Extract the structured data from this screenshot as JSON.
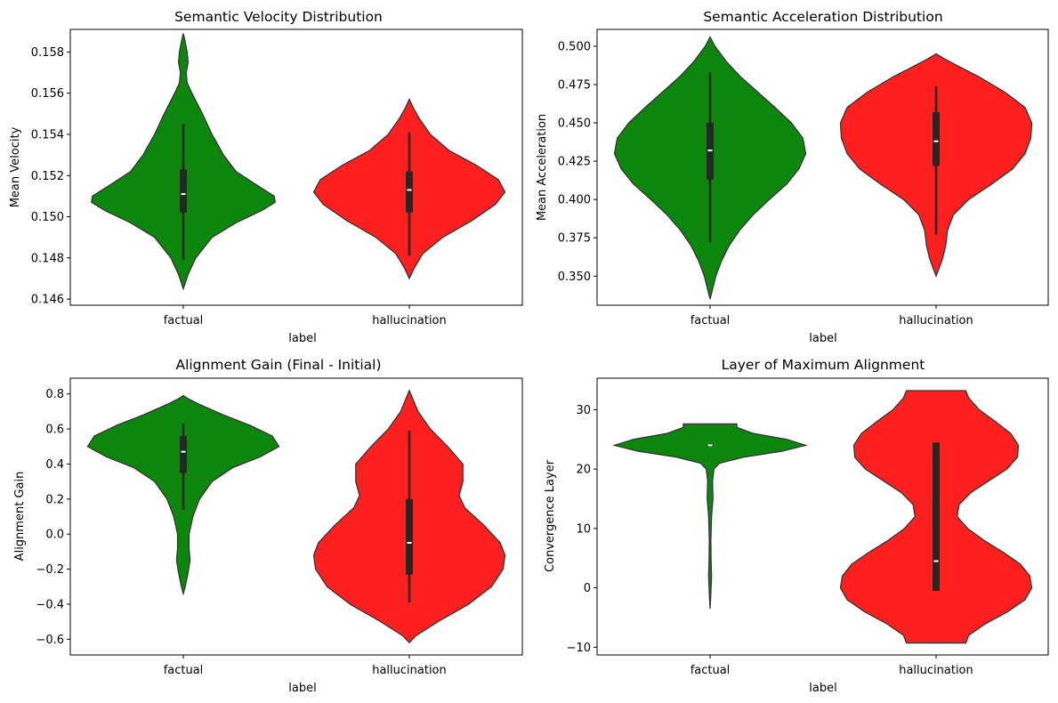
{
  "chart_data": [
    {
      "type": "violin",
      "title": "Semantic Velocity Distribution",
      "xlabel": "label",
      "ylabel": "Mean Velocity",
      "categories": [
        "factual",
        "hallucination"
      ],
      "colors": [
        "#008000",
        "#ff0000"
      ],
      "ylim": [
        0.1457,
        0.1591
      ],
      "yticks": [
        0.146,
        0.148,
        0.15,
        0.152,
        0.154,
        0.156,
        0.158
      ],
      "ytick_labels": [
        "0.146",
        "0.148",
        "0.150",
        "0.152",
        "0.154",
        "0.156",
        "0.158"
      ],
      "violins": [
        {
          "category": "factual",
          "min": 0.1465,
          "max": 0.1589,
          "whisker": [
            0.1479,
            0.1545
          ],
          "q1": 0.1502,
          "median": 0.1511,
          "q3": 0.1523,
          "profile": [
            [
              0.1465,
              0.0
            ],
            [
              0.1472,
              0.05
            ],
            [
              0.148,
              0.13
            ],
            [
              0.149,
              0.3
            ],
            [
              0.1497,
              0.55
            ],
            [
              0.1503,
              0.82
            ],
            [
              0.1507,
              0.96
            ],
            [
              0.151,
              0.95
            ],
            [
              0.1515,
              0.78
            ],
            [
              0.1522,
              0.55
            ],
            [
              0.153,
              0.42
            ],
            [
              0.154,
              0.3
            ],
            [
              0.155,
              0.2
            ],
            [
              0.156,
              0.09
            ],
            [
              0.1565,
              0.04
            ],
            [
              0.157,
              0.03
            ],
            [
              0.1575,
              0.05
            ],
            [
              0.158,
              0.04
            ],
            [
              0.1585,
              0.02
            ],
            [
              0.1589,
              0.0
            ]
          ]
        },
        {
          "category": "hallucination",
          "min": 0.147,
          "max": 0.1557,
          "whisker": [
            0.1481,
            0.1541
          ],
          "q1": 0.1502,
          "median": 0.1513,
          "q3": 0.1522,
          "profile": [
            [
              0.147,
              0.0
            ],
            [
              0.1475,
              0.05
            ],
            [
              0.1482,
              0.14
            ],
            [
              0.149,
              0.35
            ],
            [
              0.1498,
              0.65
            ],
            [
              0.1506,
              0.9
            ],
            [
              0.1512,
              1.0
            ],
            [
              0.1518,
              0.93
            ],
            [
              0.1525,
              0.7
            ],
            [
              0.1532,
              0.42
            ],
            [
              0.154,
              0.22
            ],
            [
              0.1548,
              0.1
            ],
            [
              0.1553,
              0.04
            ],
            [
              0.1557,
              0.0
            ]
          ]
        }
      ]
    },
    {
      "type": "violin",
      "title": "Semantic Acceleration Distribution",
      "xlabel": "label",
      "ylabel": "Mean Acceleration",
      "categories": [
        "factual",
        "hallucination"
      ],
      "colors": [
        "#008000",
        "#ff0000"
      ],
      "ylim": [
        0.331,
        0.511
      ],
      "yticks": [
        0.35,
        0.375,
        0.4,
        0.425,
        0.45,
        0.475,
        0.5
      ],
      "ytick_labels": [
        "0.350",
        "0.375",
        "0.400",
        "0.425",
        "0.450",
        "0.475",
        "0.500"
      ],
      "violins": [
        {
          "category": "factual",
          "min": 0.335,
          "max": 0.506,
          "whisker": [
            0.372,
            0.483
          ],
          "q1": 0.413,
          "median": 0.432,
          "q3": 0.45,
          "profile": [
            [
              0.335,
              0.0
            ],
            [
              0.34,
              0.02
            ],
            [
              0.35,
              0.06
            ],
            [
              0.36,
              0.12
            ],
            [
              0.37,
              0.2
            ],
            [
              0.38,
              0.31
            ],
            [
              0.39,
              0.45
            ],
            [
              0.4,
              0.62
            ],
            [
              0.41,
              0.8
            ],
            [
              0.42,
              0.93
            ],
            [
              0.43,
              1.0
            ],
            [
              0.44,
              0.97
            ],
            [
              0.45,
              0.85
            ],
            [
              0.46,
              0.68
            ],
            [
              0.47,
              0.5
            ],
            [
              0.48,
              0.32
            ],
            [
              0.49,
              0.17
            ],
            [
              0.5,
              0.05
            ],
            [
              0.506,
              0.0
            ]
          ]
        },
        {
          "category": "hallucination",
          "min": 0.35,
          "max": 0.495,
          "whisker": [
            0.377,
            0.474
          ],
          "q1": 0.422,
          "median": 0.438,
          "q3": 0.457,
          "profile": [
            [
              0.35,
              0.0
            ],
            [
              0.355,
              0.03
            ],
            [
              0.362,
              0.07
            ],
            [
              0.37,
              0.1
            ],
            [
              0.38,
              0.12
            ],
            [
              0.39,
              0.18
            ],
            [
              0.4,
              0.34
            ],
            [
              0.41,
              0.58
            ],
            [
              0.42,
              0.8
            ],
            [
              0.43,
              0.93
            ],
            [
              0.44,
              0.99
            ],
            [
              0.45,
              1.0
            ],
            [
              0.46,
              0.93
            ],
            [
              0.47,
              0.72
            ],
            [
              0.48,
              0.45
            ],
            [
              0.488,
              0.2
            ],
            [
              0.492,
              0.08
            ],
            [
              0.495,
              0.0
            ]
          ]
        }
      ]
    },
    {
      "type": "violin",
      "title": "Alignment Gain (Final - Initial)",
      "xlabel": "label",
      "ylabel": "Alignment Gain",
      "categories": [
        "factual",
        "hallucination"
      ],
      "colors": [
        "#008000",
        "#ff0000"
      ],
      "ylim": [
        -0.69,
        0.89
      ],
      "yticks": [
        -0.6,
        -0.4,
        -0.2,
        0.0,
        0.2,
        0.4,
        0.6,
        0.8
      ],
      "ytick_labels": [
        "−0.6",
        "−0.4",
        "−0.2",
        "0.0",
        "0.2",
        "0.4",
        "0.6",
        "0.8"
      ],
      "violins": [
        {
          "category": "factual",
          "min": -0.34,
          "max": 0.79,
          "whisker": [
            0.14,
            0.63
          ],
          "q1": 0.35,
          "median": 0.47,
          "q3": 0.56,
          "profile": [
            [
              -0.34,
              0.0
            ],
            [
              -0.3,
              0.02
            ],
            [
              -0.22,
              0.05
            ],
            [
              -0.15,
              0.07
            ],
            [
              -0.08,
              0.06
            ],
            [
              0.0,
              0.06
            ],
            [
              0.1,
              0.1
            ],
            [
              0.2,
              0.17
            ],
            [
              0.3,
              0.3
            ],
            [
              0.38,
              0.52
            ],
            [
              0.44,
              0.8
            ],
            [
              0.5,
              1.0
            ],
            [
              0.56,
              0.93
            ],
            [
              0.62,
              0.7
            ],
            [
              0.68,
              0.42
            ],
            [
              0.74,
              0.17
            ],
            [
              0.77,
              0.06
            ],
            [
              0.79,
              0.0
            ]
          ]
        },
        {
          "category": "hallucination",
          "min": -0.62,
          "max": 0.82,
          "whisker": [
            -0.39,
            0.59
          ],
          "q1": -0.23,
          "median": -0.05,
          "q3": 0.2,
          "profile": [
            [
              -0.62,
              0.0
            ],
            [
              -0.58,
              0.07
            ],
            [
              -0.5,
              0.3
            ],
            [
              -0.4,
              0.62
            ],
            [
              -0.3,
              0.86
            ],
            [
              -0.2,
              0.98
            ],
            [
              -0.12,
              1.0
            ],
            [
              -0.05,
              0.95
            ],
            [
              0.05,
              0.78
            ],
            [
              0.15,
              0.58
            ],
            [
              0.22,
              0.52
            ],
            [
              0.3,
              0.56
            ],
            [
              0.4,
              0.56
            ],
            [
              0.5,
              0.4
            ],
            [
              0.6,
              0.22
            ],
            [
              0.7,
              0.09
            ],
            [
              0.78,
              0.03
            ],
            [
              0.82,
              0.0
            ]
          ]
        }
      ]
    },
    {
      "type": "violin",
      "title": "Layer of Maximum Alignment",
      "xlabel": "label",
      "ylabel": "Convergence Layer",
      "categories": [
        "factual",
        "hallucination"
      ],
      "colors": [
        "#008000",
        "#ff0000"
      ],
      "ylim": [
        -11.3,
        35.3
      ],
      "yticks": [
        -10,
        0,
        10,
        20,
        30
      ],
      "ytick_labels": [
        "−10",
        "0",
        "10",
        "20",
        "30"
      ],
      "violins": [
        {
          "category": "factual",
          "min": -3.5,
          "max": 27.6,
          "whisker": [
            24.0,
            24.0
          ],
          "q1": 24.0,
          "median": 24.0,
          "q3": 24.0,
          "profile": [
            [
              -3.5,
              0.0
            ],
            [
              -2.0,
              0.005
            ],
            [
              0.0,
              0.01
            ],
            [
              2.0,
              0.015
            ],
            [
              5.0,
              0.01
            ],
            [
              8.0,
              0.008
            ],
            [
              12.0,
              0.015
            ],
            [
              15.0,
              0.03
            ],
            [
              18.0,
              0.025
            ],
            [
              20.0,
              0.04
            ],
            [
              21.0,
              0.1
            ],
            [
              22.0,
              0.35
            ],
            [
              23.0,
              0.75
            ],
            [
              24.0,
              1.0
            ],
            [
              25.0,
              0.8
            ],
            [
              26.0,
              0.45
            ],
            [
              27.0,
              0.28
            ],
            [
              27.6,
              0.28
            ]
          ]
        },
        {
          "category": "hallucination",
          "min": -9.3,
          "max": 33.2,
          "whisker": [
            -0.5,
            24.5
          ],
          "q1": -0.5,
          "median": 4.5,
          "q3": 24.5,
          "profile": [
            [
              -9.3,
              0.31
            ],
            [
              -8.0,
              0.34
            ],
            [
              -6.0,
              0.52
            ],
            [
              -4.0,
              0.75
            ],
            [
              -2.0,
              0.93
            ],
            [
              0.0,
              1.0
            ],
            [
              2.0,
              0.98
            ],
            [
              4.0,
              0.88
            ],
            [
              6.0,
              0.7
            ],
            [
              8.0,
              0.5
            ],
            [
              10.0,
              0.33
            ],
            [
              12.0,
              0.22
            ],
            [
              14.0,
              0.24
            ],
            [
              16.0,
              0.36
            ],
            [
              18.0,
              0.55
            ],
            [
              20.0,
              0.74
            ],
            [
              22.0,
              0.85
            ],
            [
              24.0,
              0.86
            ],
            [
              26.0,
              0.78
            ],
            [
              28.0,
              0.62
            ],
            [
              30.0,
              0.45
            ],
            [
              32.0,
              0.34
            ],
            [
              33.2,
              0.31
            ]
          ]
        }
      ]
    }
  ]
}
